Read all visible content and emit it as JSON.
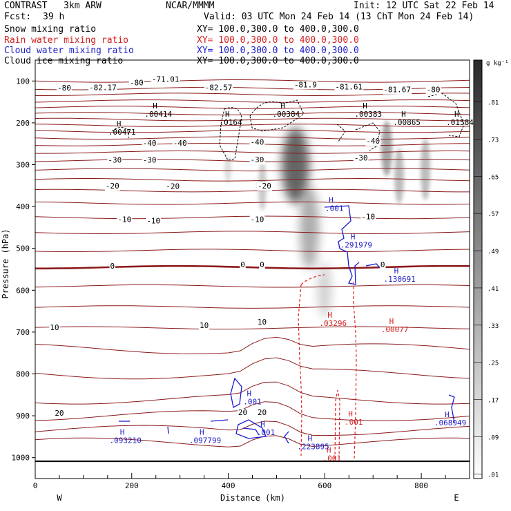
{
  "header": {
    "project": "CONTRAST   3km ARW",
    "org": "NCAR/MMMM",
    "init": "Init: 12 UTC Sat 22 Feb 14",
    "fcst_label": "Fcst:",
    "fcst_value": "39 h",
    "valid": "Valid: 03 UTC Mon 24 Feb 14 (13 ChT Mon 24 Feb 14)",
    "fields": [
      {
        "name": "Snow mixing ratio",
        "xy": "XY= 100.0,300.0 to 400.0,300.0",
        "color": "#000000"
      },
      {
        "name": "Rain water mixing ratio",
        "xy": "XY= 100.0,300.0 to 400.0,300.0",
        "color": "#d42020"
      },
      {
        "name": "Cloud water mixing ratio",
        "xy": "XY= 100.0,300.0 to 400.0,300.0",
        "color": "#2020c8"
      },
      {
        "name": "Cloud ice mixing ratio",
        "xy": "XY= 100.0,300.0 to 400.0,300.0",
        "color": "#000000"
      }
    ]
  },
  "colors": {
    "temperature": "#8b1a1a",
    "rain": "#e02020",
    "cloud_water": "#1a1ad0",
    "cloud_ice": "#000000",
    "snow_shade": "#404040"
  },
  "chart_data": {
    "type": "heatmap",
    "xlabel": "Distance (km)",
    "ylabel": "Pressure (hPa)",
    "xlim": [
      0,
      900
    ],
    "ylim": [
      1050,
      50
    ],
    "x_ticks": [
      "0",
      "200",
      "400",
      "600",
      "800"
    ],
    "x_tick_values": [
      0,
      200,
      400,
      600,
      800
    ],
    "y_ticks": [
      "100",
      "200",
      "300",
      "400",
      "500",
      "600",
      "700",
      "800",
      "900",
      "1000"
    ],
    "y_tick_values": [
      100,
      200,
      300,
      400,
      500,
      600,
      700,
      800,
      900,
      1000
    ],
    "west_label": "W",
    "east_label": "E",
    "colorbar": {
      "unit": "g kg⁻¹",
      "levels": [
        ".01",
        ".09",
        ".17",
        ".25",
        ".33",
        ".41",
        ".49",
        ".57",
        ".65",
        ".73",
        ".81"
      ],
      "values": [
        0.01,
        0.09,
        0.17,
        0.25,
        0.33,
        0.41,
        0.49,
        0.57,
        0.65,
        0.73,
        0.81
      ]
    },
    "temperature_labels": [
      {
        "x": 60,
        "p": 123,
        "text": "-80"
      },
      {
        "x": 210,
        "p": 110,
        "text": "-80"
      },
      {
        "x": 270,
        "p": 102,
        "text": "-71.01"
      },
      {
        "x": 140,
        "p": 122,
        "text": "-82.17"
      },
      {
        "x": 380,
        "p": 122,
        "text": "-82.57"
      },
      {
        "x": 560,
        "p": 115,
        "text": "-81.9"
      },
      {
        "x": 650,
        "p": 120,
        "text": "-81.61"
      },
      {
        "x": 750,
        "p": 127,
        "text": "-81.67"
      },
      {
        "x": 825,
        "p": 127,
        "text": "-80"
      },
      {
        "x": 237,
        "p": 255,
        "text": "-40"
      },
      {
        "x": 300,
        "p": 255,
        "text": "-40"
      },
      {
        "x": 460,
        "p": 252,
        "text": "-40"
      },
      {
        "x": 700,
        "p": 250,
        "text": "-40"
      },
      {
        "x": 165,
        "p": 295,
        "text": "-30"
      },
      {
        "x": 237,
        "p": 295,
        "text": "-30"
      },
      {
        "x": 460,
        "p": 294,
        "text": "-30"
      },
      {
        "x": 675,
        "p": 290,
        "text": "-30"
      },
      {
        "x": 160,
        "p": 357,
        "text": "-20"
      },
      {
        "x": 285,
        "p": 358,
        "text": "-20"
      },
      {
        "x": 475,
        "p": 357,
        "text": "-20"
      },
      {
        "x": 185,
        "p": 437,
        "text": "-10"
      },
      {
        "x": 245,
        "p": 440,
        "text": "-10"
      },
      {
        "x": 460,
        "p": 437,
        "text": "-10"
      },
      {
        "x": 690,
        "p": 430,
        "text": "-10"
      },
      {
        "x": 160,
        "p": 548,
        "text": "0"
      },
      {
        "x": 430,
        "p": 545,
        "text": "0"
      },
      {
        "x": 470,
        "p": 545,
        "text": "0"
      },
      {
        "x": 720,
        "p": 545,
        "text": "0"
      },
      {
        "x": 40,
        "p": 695,
        "text": "10"
      },
      {
        "x": 350,
        "p": 690,
        "text": "10"
      },
      {
        "x": 470,
        "p": 682,
        "text": "10"
      },
      {
        "x": 50,
        "p": 900,
        "text": "20"
      },
      {
        "x": 430,
        "p": 898,
        "text": "20"
      },
      {
        "x": 470,
        "p": 898,
        "text": "20"
      }
    ],
    "maxima": [
      {
        "x": 180,
        "p": 223,
        "text": ".00471",
        "color": "#000000"
      },
      {
        "x": 255,
        "p": 180,
        "text": ".00414",
        "color": "#000000"
      },
      {
        "x": 405,
        "p": 200,
        "text": ".0164",
        "color": "#000000"
      },
      {
        "x": 520,
        "p": 180,
        "text": ".00384",
        "color": "#000000"
      },
      {
        "x": 690,
        "p": 180,
        "text": ".00383",
        "color": "#000000"
      },
      {
        "x": 770,
        "p": 200,
        "text": ".00865",
        "color": "#000000"
      },
      {
        "x": 880,
        "p": 200,
        "text": ".01584",
        "color": "#000000"
      },
      {
        "x": 620,
        "p": 406,
        "text": ".001",
        "color": "#2020c8"
      },
      {
        "x": 665,
        "p": 493,
        "text": ".291979",
        "color": "#2020c8"
      },
      {
        "x": 755,
        "p": 575,
        "text": ".130691",
        "color": "#2020c8"
      },
      {
        "x": 617,
        "p": 680,
        "text": ".03296",
        "color": "#d42020"
      },
      {
        "x": 745,
        "p": 695,
        "text": ".00077",
        "color": "#d42020"
      },
      {
        "x": 660,
        "p": 916,
        "text": ".001",
        "color": "#d42020"
      },
      {
        "x": 615,
        "p": 1003,
        "text": ".001",
        "color": "#d42020"
      },
      {
        "x": 187,
        "p": 960,
        "text": ".093210",
        "color": "#2020c8"
      },
      {
        "x": 352,
        "p": 960,
        "text": ".097799",
        "color": "#2020c8"
      },
      {
        "x": 478,
        "p": 941,
        "text": ".001",
        "color": "#2020c8"
      },
      {
        "x": 576,
        "p": 975,
        "text": ".223895",
        "color": "#2020c8"
      },
      {
        "x": 450,
        "p": 868,
        "text": ".001",
        "color": "#2020c8"
      },
      {
        "x": 860,
        "p": 918,
        "text": ".068949",
        "color": "#2020c8"
      }
    ]
  }
}
